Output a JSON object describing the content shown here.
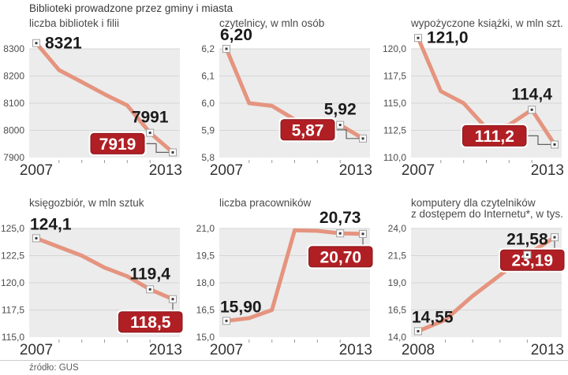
{
  "header": {
    "title": "Biblioteki prowadzone przez gminy i miasta"
  },
  "source": {
    "label": "źródło: GUS"
  },
  "colors": {
    "line": "#e5947f",
    "plot_bg": "#ececec",
    "grid": "#d6d6d6",
    "axis_text": "#4d4d4d",
    "x_label_text": "#333333",
    "value_text": "#1b1b1b",
    "badge_bg": "#b01f24",
    "badge_border": "#8a161a",
    "badge_text": "#ffffff",
    "connector": "#606060",
    "marker_border": "#a0a0a0",
    "marker_dot": "#3a3a3a"
  },
  "chart_data": [
    {
      "type": "line",
      "title": [
        "liczba bibliotek i filii"
      ],
      "x": [
        2007,
        2008,
        2009,
        2010,
        2011,
        2012,
        2013
      ],
      "x_axis_labels": [
        "2007",
        "2013"
      ],
      "values": [
        8321,
        8222,
        8178,
        8133,
        8092,
        7991,
        7919
      ],
      "ylim": [
        7900,
        8300
      ],
      "yticks": [
        {
          "value": 8300,
          "label": "8300"
        },
        {
          "value": 8200,
          "label": "8200"
        },
        {
          "value": 8100,
          "label": "8100"
        },
        {
          "value": 8000,
          "label": "8000"
        },
        {
          "value": 7900,
          "label": "7900"
        }
      ],
      "annotations": {
        "first": {
          "label": "8321",
          "pos": "right"
        },
        "second_last": {
          "label": "7991"
        },
        "last": {
          "label": "7919",
          "badge_pos": "left"
        }
      }
    },
    {
      "type": "line",
      "title": [
        "czytelnicy, w mln osób"
      ],
      "x": [
        2007,
        2008,
        2009,
        2010,
        2011,
        2012,
        2013
      ],
      "x_axis_labels": [
        "2007",
        "2013"
      ],
      "values": [
        6.2,
        6.0,
        5.99,
        5.94,
        5.93,
        5.92,
        5.87
      ],
      "ylim": [
        5.8,
        6.2
      ],
      "yticks": [
        {
          "value": 6.2,
          "label": "6,2"
        },
        {
          "value": 6.1,
          "label": "6,1"
        },
        {
          "value": 6.0,
          "label": "6,0"
        },
        {
          "value": 5.9,
          "label": "5,9"
        },
        {
          "value": 5.8,
          "label": "5,8"
        }
      ],
      "annotations": {
        "first": {
          "label": "6,20",
          "pos": "above"
        },
        "second_last": {
          "label": "5,92"
        },
        "last": {
          "label": "5,87",
          "badge_pos": "left"
        }
      }
    },
    {
      "type": "line",
      "title": [
        "wypożyczone książki, w mln szt."
      ],
      "x": [
        2007,
        2008,
        2009,
        2010,
        2011,
        2012,
        2013
      ],
      "x_axis_labels": [
        "2007",
        "2013"
      ],
      "values": [
        121.0,
        116.1,
        115.0,
        112.7,
        113.0,
        114.4,
        111.2
      ],
      "ylim": [
        110.0,
        120.0
      ],
      "yticks": [
        {
          "value": 120.0,
          "label": "120,0"
        },
        {
          "value": 117.5,
          "label": "117,5"
        },
        {
          "value": 115.0,
          "label": "115,0"
        },
        {
          "value": 112.5,
          "label": "112,5"
        },
        {
          "value": 110.0,
          "label": "110,0"
        }
      ],
      "annotations": {
        "first": {
          "label": "121,0",
          "pos": "right"
        },
        "second_last": {
          "label": "114,4"
        },
        "last": {
          "label": "111,2",
          "badge_pos": "left"
        }
      }
    },
    {
      "type": "line",
      "title": [
        "księgozbiór, w mln sztuk"
      ],
      "x": [
        2007,
        2008,
        2009,
        2010,
        2011,
        2012,
        2013
      ],
      "x_axis_labels": [
        "2007",
        "2013"
      ],
      "values": [
        124.1,
        123.3,
        122.5,
        121.4,
        120.6,
        119.4,
        118.5
      ],
      "ylim": [
        115.0,
        125.0
      ],
      "yticks": [
        {
          "value": 125.0,
          "label": "125,0"
        },
        {
          "value": 122.5,
          "label": "122,5"
        },
        {
          "value": 120.0,
          "label": "120,0"
        },
        {
          "value": 117.5,
          "label": "117,5"
        },
        {
          "value": 115.0,
          "label": "115,0"
        }
      ],
      "annotations": {
        "first": {
          "label": "124,1",
          "pos": "above"
        },
        "second_last": {
          "label": "119,4"
        },
        "last": {
          "label": "118,5",
          "badge_pos": "below"
        }
      }
    },
    {
      "type": "line",
      "title": [
        "liczba pracowników"
      ],
      "x": [
        2007,
        2008,
        2009,
        2010,
        2011,
        2012,
        2013
      ],
      "x_axis_labels": [
        "2007",
        "2013"
      ],
      "values": [
        15.9,
        16.05,
        16.5,
        20.9,
        20.87,
        20.73,
        20.7
      ],
      "ylim": [
        15.0,
        21.0
      ],
      "yticks": [
        {
          "value": 21.0,
          "label": "21,0"
        },
        {
          "value": 19.5,
          "label": "19,5"
        },
        {
          "value": 18.0,
          "label": "18,0"
        },
        {
          "value": 16.5,
          "label": "16,5"
        },
        {
          "value": 15.0,
          "label": "15,0"
        }
      ],
      "annotations": {
        "first": {
          "label": "15,90",
          "pos": "above"
        },
        "second_last": {
          "label": "20,73"
        },
        "last": {
          "label": "20,70",
          "badge_pos": "below"
        }
      }
    },
    {
      "type": "line",
      "title": [
        "komputery dla czytelników",
        "z dostępem do Internetu*, w tys."
      ],
      "x": [
        2008,
        2009,
        2010,
        2011,
        2012,
        2013
      ],
      "x_axis_labels": [
        "2008",
        "2013"
      ],
      "values": [
        14.55,
        15.6,
        17.8,
        19.7,
        21.58,
        23.19
      ],
      "ylim": [
        14.0,
        24.0
      ],
      "yticks": [
        {
          "value": 24.0,
          "label": "24,0"
        },
        {
          "value": 21.5,
          "label": "21,5"
        },
        {
          "value": 19.0,
          "label": "19,0"
        },
        {
          "value": 16.5,
          "label": "16,5"
        },
        {
          "value": 14.0,
          "label": "14,0"
        }
      ],
      "annotations": {
        "first": {
          "label": "14,55",
          "pos": "above"
        },
        "second_last": {
          "label": "21,58"
        },
        "last": {
          "label": "23,19",
          "badge_pos": "below"
        }
      }
    }
  ]
}
